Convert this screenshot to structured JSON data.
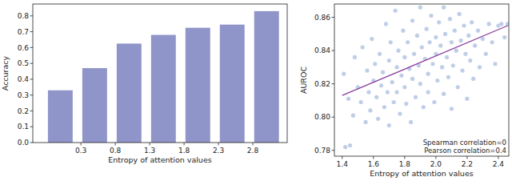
{
  "chart_data": [
    {
      "type": "bar",
      "x_label": "Entropy of attention values",
      "y_label": "Accuracy",
      "x": [
        0,
        0.5,
        1.0,
        1.5,
        2.0,
        2.5,
        3.0
      ],
      "values": [
        0.33,
        0.47,
        0.625,
        0.68,
        0.725,
        0.745,
        0.83
      ],
      "color": "#8f95c9",
      "xlim": [
        -0.4,
        3.3
      ],
      "xticks": [
        0.3,
        0.8,
        1.3,
        1.8,
        2.3,
        2.8
      ],
      "ylim": [
        0,
        0.875
      ],
      "yticks": [
        {
          "value": 0,
          "label": "0.0"
        },
        0.1,
        0.2,
        0.3,
        0.4,
        0.5,
        0.6,
        0.7,
        0.8
      ],
      "grid": false
    },
    {
      "type": "scatter",
      "x_label": "Entropy of attention values",
      "y_label": "AUROC",
      "annotations": [
        "Spearman correlation=0",
        "Pearson correlation=0.4"
      ],
      "x": [
        1.42,
        1.45,
        1.41,
        1.44,
        1.47,
        1.48,
        1.5,
        1.52,
        1.53,
        1.55,
        1.56,
        1.57,
        1.58,
        1.59,
        1.6,
        1.61,
        1.62,
        1.63,
        1.64,
        1.65,
        1.66,
        1.67,
        1.68,
        1.69,
        1.7,
        1.7,
        1.71,
        1.72,
        1.73,
        1.74,
        1.75,
        1.75,
        1.76,
        1.77,
        1.78,
        1.79,
        1.8,
        1.8,
        1.81,
        1.82,
        1.83,
        1.84,
        1.85,
        1.85,
        1.86,
        1.87,
        1.88,
        1.89,
        1.9,
        1.9,
        1.91,
        1.92,
        1.93,
        1.94,
        1.95,
        1.95,
        1.96,
        1.97,
        1.98,
        1.99,
        2.0,
        2.0,
        2.01,
        2.02,
        2.03,
        2.04,
        2.05,
        2.05,
        2.06,
        2.07,
        2.08,
        2.09,
        2.1,
        2.1,
        2.11,
        2.12,
        2.13,
        2.14,
        2.15,
        2.16,
        2.17,
        2.18,
        2.19,
        2.2,
        2.21,
        2.22,
        2.23,
        2.24,
        2.25,
        2.27,
        2.28,
        2.3,
        2.32,
        2.34,
        2.36,
        2.38,
        2.4,
        2.42,
        2.44,
        2.46
      ],
      "series": [
        {
          "type": "scatter",
          "color": "#b8c9e4",
          "marker": "circle",
          "values": [
            0.782,
            0.783,
            0.826,
            0.811,
            0.801,
            0.836,
            0.818,
            0.809,
            0.842,
            0.797,
            0.828,
            0.815,
            0.804,
            0.847,
            0.822,
            0.832,
            0.812,
            0.799,
            0.838,
            0.819,
            0.827,
            0.806,
            0.856,
            0.815,
            0.834,
            0.795,
            0.845,
            0.821,
            0.809,
            0.864,
            0.83,
            0.815,
            0.84,
            0.802,
            0.825,
            0.852,
            0.818,
            0.836,
            0.808,
            0.845,
            0.829,
            0.797,
            0.858,
            0.823,
            0.838,
            0.812,
            0.849,
            0.831,
            0.866,
            0.82,
            0.842,
            0.806,
            0.835,
            0.853,
            0.826,
            0.815,
            0.845,
            0.861,
            0.832,
            0.809,
            0.848,
            0.838,
            0.822,
            0.857,
            0.843,
            0.83,
            0.866,
            0.814,
            0.85,
            0.836,
            0.824,
            0.859,
            0.845,
            0.805,
            0.831,
            0.852,
            0.84,
            0.818,
            0.862,
            0.846,
            0.828,
            0.855,
            0.838,
            0.811,
            0.849,
            0.834,
            0.857,
            0.823,
            0.843,
            0.852,
            0.83,
            0.847,
            0.838,
            0.856,
            0.845,
            0.832,
            0.855,
            0.856,
            0.848,
            0.856
          ]
        },
        {
          "type": "line",
          "color": "#8a3fa0",
          "line_style": "solid",
          "x": [
            1.4,
            2.46
          ],
          "values": [
            0.813,
            0.855
          ]
        }
      ],
      "xlim": [
        1.35,
        2.467
      ],
      "xticks": [
        1.4,
        1.6,
        1.8,
        {
          "value": 2,
          "label": "2.0"
        },
        2.2,
        2.4
      ],
      "ylim": [
        0.7765,
        0.868
      ],
      "yticks": [
        0.78,
        {
          "value": 0.8,
          "label": "0.80"
        },
        0.82,
        0.84,
        0.86
      ],
      "grid": false
    }
  ]
}
